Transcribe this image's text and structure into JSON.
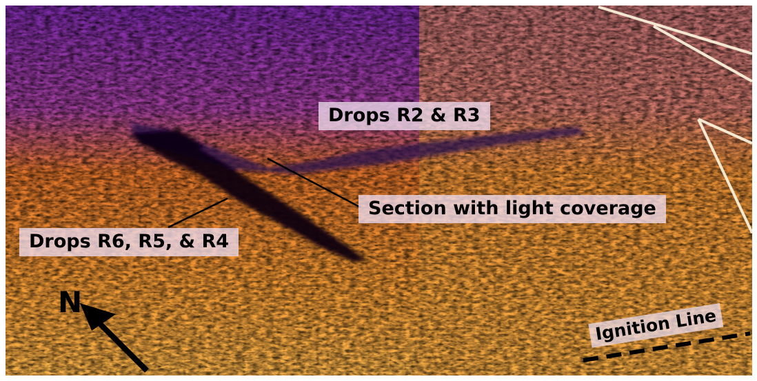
{
  "image": {
    "kind": "aerial infrared thermal image"
  },
  "annotations": {
    "drops_r2_r3": "Drops R2 & R3",
    "section_light": "Section with light coverage",
    "drops_r6_r5_r4": "Drops R6, R5, & R4",
    "north": "N",
    "ignition_line": "Ignition Line"
  },
  "colors": {
    "hot": "#fff6c8",
    "warm": "#ffb545",
    "mid": "#e7711b",
    "cool": "#8a2fb6",
    "cold": "#3c0f6e",
    "retardant": "#0a0012"
  },
  "icons": {
    "north_arrow": "north-arrow-icon",
    "ignition_dash": "dashed-line"
  }
}
